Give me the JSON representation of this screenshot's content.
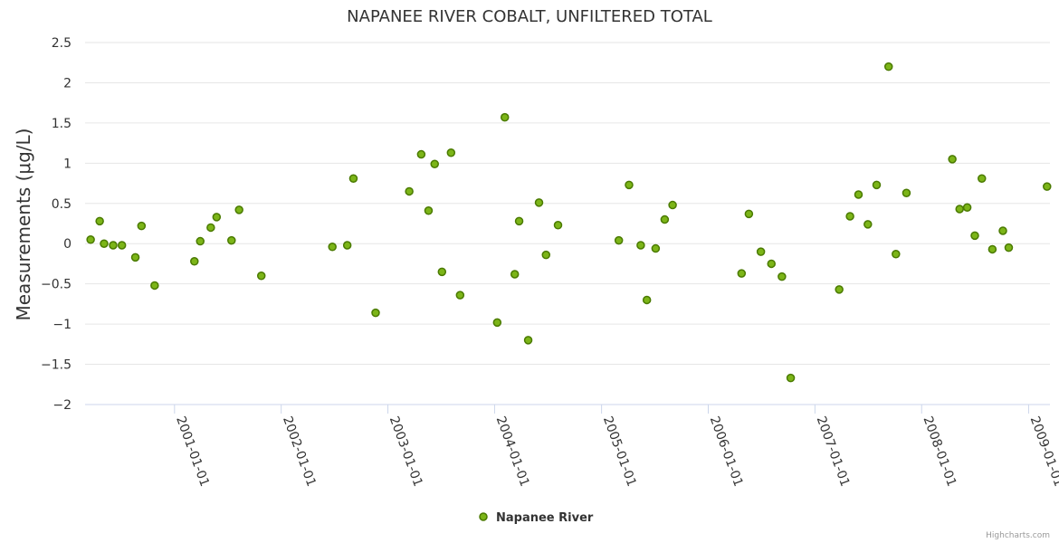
{
  "chart_data": {
    "type": "scatter",
    "title": "NAPANEE RIVER COBALT, UNFILTERED TOTAL",
    "ylabel": "Measurements (μg/L)",
    "xlabel": "",
    "ylim": [
      -2,
      2.5
    ],
    "xlim": [
      "2000-03-01",
      "2009-03-15"
    ],
    "yticks": [
      2.5,
      2,
      1.5,
      1,
      0.5,
      0,
      -0.5,
      -1,
      -1.5,
      -2
    ],
    "ytick_labels": [
      "2.5",
      "2",
      "1.5",
      "1",
      "0.5",
      "0",
      "−0.5",
      "−1",
      "−1.5",
      "−2"
    ],
    "xticks": [
      "2001-01-01",
      "2002-01-01",
      "2003-01-01",
      "2004-01-01",
      "2005-01-01",
      "2006-01-01",
      "2007-01-01",
      "2008-01-01",
      "2009-01-01"
    ],
    "grid": true,
    "legend": "bottom-center",
    "series": [
      {
        "name": "Napanee River",
        "color": "#7cb518",
        "points": [
          {
            "x": "2000-03-20",
            "y": 0.05
          },
          {
            "x": "2000-04-20",
            "y": 0.28
          },
          {
            "x": "2000-05-05",
            "y": 0.0
          },
          {
            "x": "2000-06-05",
            "y": -0.02
          },
          {
            "x": "2000-07-05",
            "y": -0.02
          },
          {
            "x": "2000-08-20",
            "y": -0.17
          },
          {
            "x": "2000-09-10",
            "y": 0.22
          },
          {
            "x": "2000-10-25",
            "y": -0.52
          },
          {
            "x": "2001-03-10",
            "y": -0.22
          },
          {
            "x": "2001-03-30",
            "y": 0.03
          },
          {
            "x": "2001-05-05",
            "y": 0.2
          },
          {
            "x": "2001-05-25",
            "y": 0.33
          },
          {
            "x": "2001-07-15",
            "y": 0.04
          },
          {
            "x": "2001-08-10",
            "y": 0.42
          },
          {
            "x": "2001-10-25",
            "y": -0.4
          },
          {
            "x": "2002-06-25",
            "y": -0.04
          },
          {
            "x": "2002-08-15",
            "y": -0.02
          },
          {
            "x": "2002-09-05",
            "y": 0.81
          },
          {
            "x": "2002-11-20",
            "y": -0.86
          },
          {
            "x": "2003-03-15",
            "y": 0.65
          },
          {
            "x": "2003-04-25",
            "y": 1.11
          },
          {
            "x": "2003-05-20",
            "y": 0.41
          },
          {
            "x": "2003-06-10",
            "y": 0.99
          },
          {
            "x": "2003-07-05",
            "y": -0.35
          },
          {
            "x": "2003-08-05",
            "y": 1.13
          },
          {
            "x": "2003-09-05",
            "y": -0.64
          },
          {
            "x": "2004-01-10",
            "y": -0.98
          },
          {
            "x": "2004-02-05",
            "y": 1.57
          },
          {
            "x": "2004-03-10",
            "y": -0.38
          },
          {
            "x": "2004-03-25",
            "y": 0.28
          },
          {
            "x": "2004-04-25",
            "y": -1.2
          },
          {
            "x": "2004-06-01",
            "y": 0.51
          },
          {
            "x": "2004-06-25",
            "y": -0.14
          },
          {
            "x": "2004-08-05",
            "y": 0.23
          },
          {
            "x": "2005-03-01",
            "y": 0.04
          },
          {
            "x": "2005-04-05",
            "y": 0.73
          },
          {
            "x": "2005-05-15",
            "y": -0.02
          },
          {
            "x": "2005-06-05",
            "y": -0.7
          },
          {
            "x": "2005-07-05",
            "y": -0.06
          },
          {
            "x": "2005-08-05",
            "y": 0.3
          },
          {
            "x": "2005-09-01",
            "y": 0.48
          },
          {
            "x": "2006-04-25",
            "y": -0.37
          },
          {
            "x": "2006-05-20",
            "y": 0.37
          },
          {
            "x": "2006-06-30",
            "y": -0.1
          },
          {
            "x": "2006-08-05",
            "y": -0.25
          },
          {
            "x": "2006-09-10",
            "y": -0.41
          },
          {
            "x": "2006-10-10",
            "y": -1.67
          },
          {
            "x": "2007-03-25",
            "y": -0.57
          },
          {
            "x": "2007-05-01",
            "y": 0.34
          },
          {
            "x": "2007-05-30",
            "y": 0.61
          },
          {
            "x": "2007-07-01",
            "y": 0.24
          },
          {
            "x": "2007-07-31",
            "y": 0.73
          },
          {
            "x": "2007-09-10",
            "y": 2.2
          },
          {
            "x": "2007-10-05",
            "y": -0.13
          },
          {
            "x": "2007-11-10",
            "y": 0.63
          },
          {
            "x": "2008-04-15",
            "y": 1.05
          },
          {
            "x": "2008-05-10",
            "y": 0.43
          },
          {
            "x": "2008-06-05",
            "y": 0.45
          },
          {
            "x": "2008-07-01",
            "y": 0.1
          },
          {
            "x": "2008-07-25",
            "y": 0.81
          },
          {
            "x": "2008-08-30",
            "y": -0.07
          },
          {
            "x": "2008-10-05",
            "y": 0.16
          },
          {
            "x": "2008-10-25",
            "y": -0.05
          },
          {
            "x": "2009-03-05",
            "y": 0.71
          }
        ]
      }
    ]
  },
  "credits": "Highcharts.com"
}
